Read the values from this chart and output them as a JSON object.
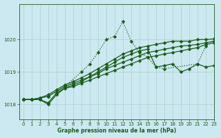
{
  "title": "Graphe pression niveau de la mer (hPa)",
  "bg_color": "#cce8f0",
  "grid_color": "#b0d4d4",
  "line_color": "#1a5c1a",
  "xlim": [
    -0.5,
    23
  ],
  "ylim": [
    1017.55,
    1021.1
  ],
  "yticks": [
    1018,
    1019,
    1020
  ],
  "xtick_labels": [
    "0",
    "1",
    "2",
    "3",
    "4",
    "5",
    "6",
    "7",
    "8",
    "9",
    "10",
    "11",
    "12",
    "13",
    "14",
    "15",
    "16",
    "17",
    "18",
    "19",
    "20",
    "21",
    "22",
    "23"
  ],
  "xticks": [
    0,
    1,
    2,
    3,
    4,
    5,
    6,
    7,
    8,
    9,
    10,
    11,
    12,
    13,
    14,
    15,
    16,
    17,
    18,
    19,
    20,
    21,
    22,
    23
  ],
  "curves": [
    {
      "x": [
        0,
        1,
        3,
        5,
        7,
        8,
        9,
        10,
        11,
        12,
        13,
        14,
        15,
        16,
        17,
        21,
        22,
        23
      ],
      "y": [
        1018.15,
        1018.15,
        1018.25,
        1018.55,
        1019.0,
        1019.25,
        1019.6,
        1020.0,
        1020.1,
        1020.55,
        1019.95,
        1019.6,
        1019.45,
        1019.15,
        1019.1,
        1019.25,
        1019.8,
        1019.95
      ],
      "marker": "D",
      "markersize": 2.5,
      "linewidth": 0.9,
      "linestyle": ":"
    },
    {
      "x": [
        0,
        1,
        2,
        3,
        4,
        5,
        6,
        7,
        8,
        9,
        10,
        11,
        12,
        13,
        14,
        15,
        16,
        17,
        18,
        19,
        20,
        21,
        22,
        23
      ],
      "y": [
        1018.15,
        1018.15,
        1018.15,
        1018.05,
        1018.35,
        1018.5,
        1018.55,
        1018.65,
        1018.75,
        1018.85,
        1018.95,
        1019.05,
        1019.15,
        1019.25,
        1019.35,
        1019.45,
        1019.5,
        1019.55,
        1019.6,
        1019.65,
        1019.7,
        1019.75,
        1019.85,
        1019.9
      ],
      "marker": "D",
      "markersize": 2.5,
      "linewidth": 0.9,
      "linestyle": "-"
    },
    {
      "x": [
        0,
        1,
        2,
        3,
        4,
        5,
        6,
        7,
        8,
        9,
        10,
        11,
        12,
        13,
        14,
        15,
        16,
        17,
        18,
        19,
        20,
        21,
        22,
        23
      ],
      "y": [
        1018.15,
        1018.15,
        1018.2,
        1018.25,
        1018.4,
        1018.55,
        1018.65,
        1018.75,
        1018.85,
        1018.95,
        1019.1,
        1019.2,
        1019.3,
        1019.4,
        1019.5,
        1019.6,
        1019.65,
        1019.7,
        1019.75,
        1019.8,
        1019.82,
        1019.85,
        1019.9,
        1019.95
      ],
      "marker": "D",
      "markersize": 2.5,
      "linewidth": 0.9,
      "linestyle": "-"
    },
    {
      "x": [
        0,
        1,
        2,
        3,
        4,
        5,
        6,
        7,
        8,
        9,
        10,
        11,
        12,
        13,
        14,
        15,
        16,
        17,
        18,
        19,
        20,
        21,
        22,
        23
      ],
      "y": [
        1018.15,
        1018.15,
        1018.2,
        1018.3,
        1018.45,
        1018.6,
        1018.7,
        1018.82,
        1018.95,
        1019.1,
        1019.25,
        1019.4,
        1019.55,
        1019.65,
        1019.75,
        1019.8,
        1019.85,
        1019.9,
        1019.95,
        1019.95,
        1019.95,
        1020.0,
        1020.0,
        1020.02
      ],
      "marker": "D",
      "markersize": 2.5,
      "linewidth": 0.9,
      "linestyle": "-"
    },
    {
      "x": [
        0,
        1,
        2,
        3,
        4,
        5,
        6,
        7,
        8,
        9,
        10,
        11,
        12,
        13,
        14,
        15,
        16,
        17,
        18,
        19,
        20,
        21,
        22,
        23
      ],
      "y": [
        1018.15,
        1018.15,
        1018.15,
        1018.0,
        1018.3,
        1018.5,
        1018.6,
        1018.7,
        1018.85,
        1019.0,
        1019.15,
        1019.3,
        1019.45,
        1019.55,
        1019.65,
        1019.7,
        1019.15,
        1019.2,
        1019.25,
        1019.0,
        1019.1,
        1019.25,
        1019.15,
        1019.2
      ],
      "marker": "D",
      "markersize": 2.5,
      "linewidth": 0.9,
      "linestyle": "-"
    }
  ]
}
